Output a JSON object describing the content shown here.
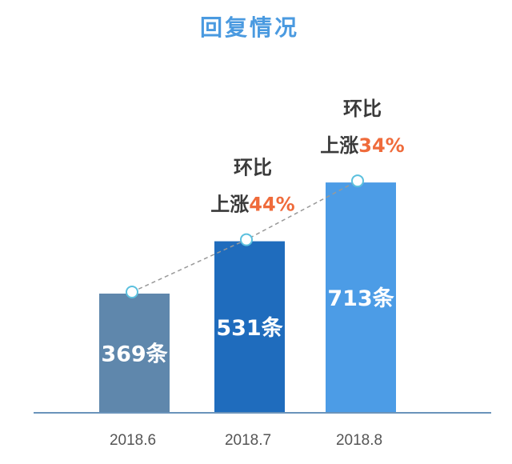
{
  "chart_data": {
    "type": "bar",
    "title": "回复情况",
    "categories": [
      "2018.6",
      "2018.7",
      "2018.8"
    ],
    "values": [
      369,
      531,
      713
    ],
    "value_labels": [
      "369条",
      "531条",
      "713条"
    ],
    "bar_colors": [
      "#5f87ac",
      "#1f6cbd",
      "#4c9ce6"
    ],
    "line": {
      "style": "dashed",
      "color": "#999999",
      "marker_color": "#5bc0de"
    },
    "annotations": [
      {
        "category": "2018.7",
        "line1": "环比",
        "line2_prefix": "上涨",
        "line2_value": "44%"
      },
      {
        "category": "2018.8",
        "line1": "环比",
        "line2_prefix": "上涨",
        "line2_value": "34%"
      }
    ],
    "ylim": [
      0,
      800
    ],
    "grid": false,
    "legend": "none"
  },
  "colors": {
    "title": "#4a9ae0",
    "axis": "#6a93ba",
    "annotation_text": "#3a3a3a",
    "annotation_value": "#ef6b3b"
  }
}
